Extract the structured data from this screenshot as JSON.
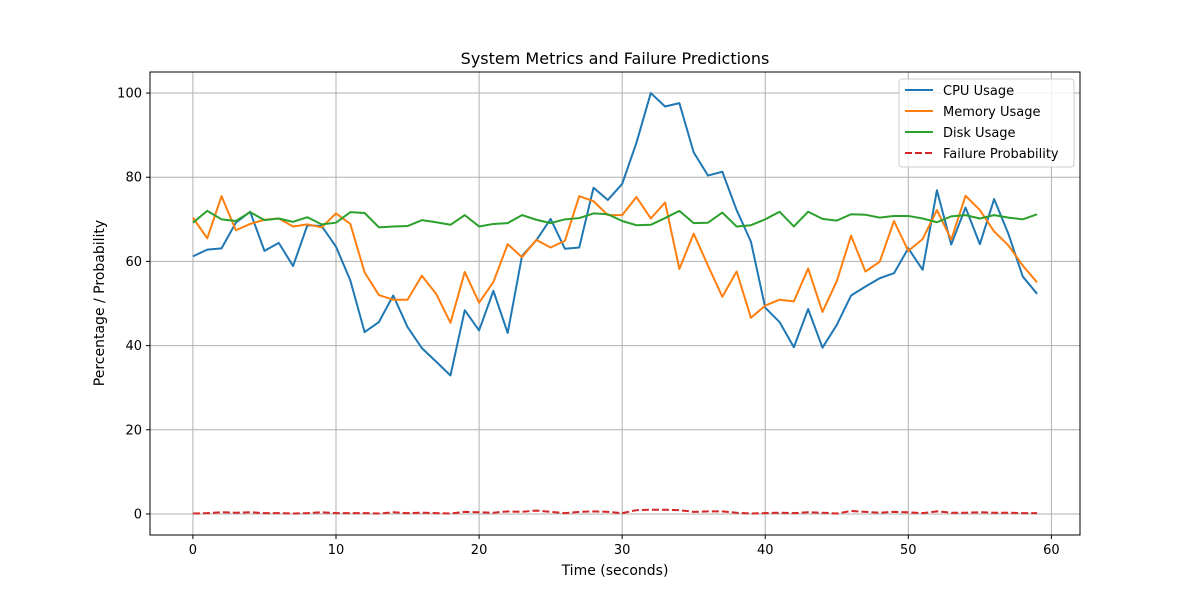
{
  "chart_data": {
    "type": "line",
    "title": "System Metrics and Failure Predictions",
    "xlabel": "Time (seconds)",
    "ylabel": "Percentage / Probability",
    "xlim": [
      -3,
      62
    ],
    "ylim": [
      -5,
      105
    ],
    "xticks": [
      0,
      10,
      20,
      30,
      40,
      50,
      60
    ],
    "yticks": [
      0,
      20,
      40,
      60,
      80,
      100
    ],
    "grid": true,
    "legend_position": "top-right",
    "x": [
      0,
      1,
      2,
      3,
      4,
      5,
      6,
      7,
      8,
      9,
      10,
      11,
      12,
      13,
      14,
      15,
      16,
      17,
      18,
      19,
      20,
      21,
      22,
      23,
      24,
      25,
      26,
      27,
      28,
      29,
      30,
      31,
      32,
      33,
      34,
      35,
      36,
      37,
      38,
      39,
      40,
      41,
      42,
      43,
      44,
      45,
      46,
      47,
      48,
      49,
      50,
      51,
      52,
      53,
      54,
      55,
      56,
      57,
      58,
      59
    ],
    "series": [
      {
        "name": "CPU Usage",
        "color": "#1f77b4",
        "dash": "solid",
        "values": [
          61.2,
          62.8,
          63.1,
          69.2,
          71.8,
          62.5,
          64.4,
          58.9,
          68.6,
          68.4,
          63.5,
          55.5,
          43.2,
          45.6,
          51.9,
          44.4,
          39.4,
          36.2,
          32.9,
          48.4,
          43.6,
          53.0,
          43.0,
          61.3,
          65.0,
          70.1,
          63.0,
          63.3,
          77.5,
          74.6,
          78.4,
          88.2,
          100.0,
          96.8,
          97.6,
          85.9,
          80.4,
          81.3,
          72.2,
          64.7,
          49.0,
          45.6,
          39.6,
          48.7,
          39.5,
          44.9,
          51.9,
          54.0,
          56.0,
          57.2,
          63.1,
          58.0,
          76.9,
          64.0,
          72.8,
          64.1,
          74.8,
          66.5,
          56.4,
          52.3
        ]
      },
      {
        "name": "Memory Usage",
        "color": "#ff7f0e",
        "dash": "solid",
        "values": [
          70.4,
          65.5,
          75.5,
          67.4,
          68.9,
          69.9,
          70.2,
          68.3,
          68.8,
          68.1,
          71.4,
          68.9,
          57.4,
          52.0,
          50.9,
          50.9,
          56.6,
          52.3,
          45.4,
          57.5,
          50.2,
          55.1,
          64.1,
          61.0,
          65.1,
          63.3,
          64.9,
          75.5,
          74.3,
          71.0,
          71.0,
          75.3,
          70.2,
          74.0,
          58.2,
          66.6,
          59.0,
          51.6,
          57.6,
          46.6,
          49.5,
          50.9,
          50.5,
          58.3,
          48.0,
          55.3,
          66.1,
          57.6,
          59.9,
          69.6,
          62.5,
          65.3,
          72.2,
          65.2,
          75.6,
          72.2,
          67.1,
          63.8,
          59.0,
          55.0
        ]
      },
      {
        "name": "Disk Usage",
        "color": "#2ca02c",
        "dash": "solid",
        "values": [
          69.2,
          72.0,
          70.0,
          69.6,
          71.7,
          69.8,
          70.2,
          69.4,
          70.5,
          68.8,
          69.2,
          71.7,
          71.5,
          68.1,
          68.3,
          68.4,
          69.8,
          69.3,
          68.7,
          71.0,
          68.3,
          68.9,
          69.1,
          71.0,
          69.9,
          69.1,
          70.0,
          70.3,
          71.4,
          71.2,
          69.6,
          68.6,
          68.7,
          70.3,
          72.0,
          69.1,
          69.2,
          71.6,
          68.3,
          68.6,
          70.0,
          71.8,
          68.3,
          71.8,
          70.1,
          69.7,
          71.2,
          71.1,
          70.4,
          70.8,
          70.8,
          70.2,
          69.3,
          70.7,
          71.0,
          70.2,
          71.0,
          70.4,
          70.0,
          71.2
        ]
      },
      {
        "name": "Failure Probability",
        "color": "#d62728",
        "dash": "dashed",
        "values": [
          0.1,
          0.2,
          0.4,
          0.3,
          0.4,
          0.2,
          0.2,
          0.1,
          0.2,
          0.4,
          0.2,
          0.2,
          0.2,
          0.1,
          0.4,
          0.2,
          0.3,
          0.2,
          0.1,
          0.5,
          0.4,
          0.3,
          0.6,
          0.5,
          0.8,
          0.5,
          0.2,
          0.5,
          0.6,
          0.5,
          0.2,
          0.9,
          1.0,
          1.0,
          0.9,
          0.5,
          0.6,
          0.6,
          0.3,
          0.1,
          0.2,
          0.3,
          0.2,
          0.4,
          0.3,
          0.1,
          0.7,
          0.5,
          0.3,
          0.5,
          0.4,
          0.2,
          0.6,
          0.3,
          0.3,
          0.4,
          0.3,
          0.3,
          0.2,
          0.2
        ]
      }
    ]
  }
}
